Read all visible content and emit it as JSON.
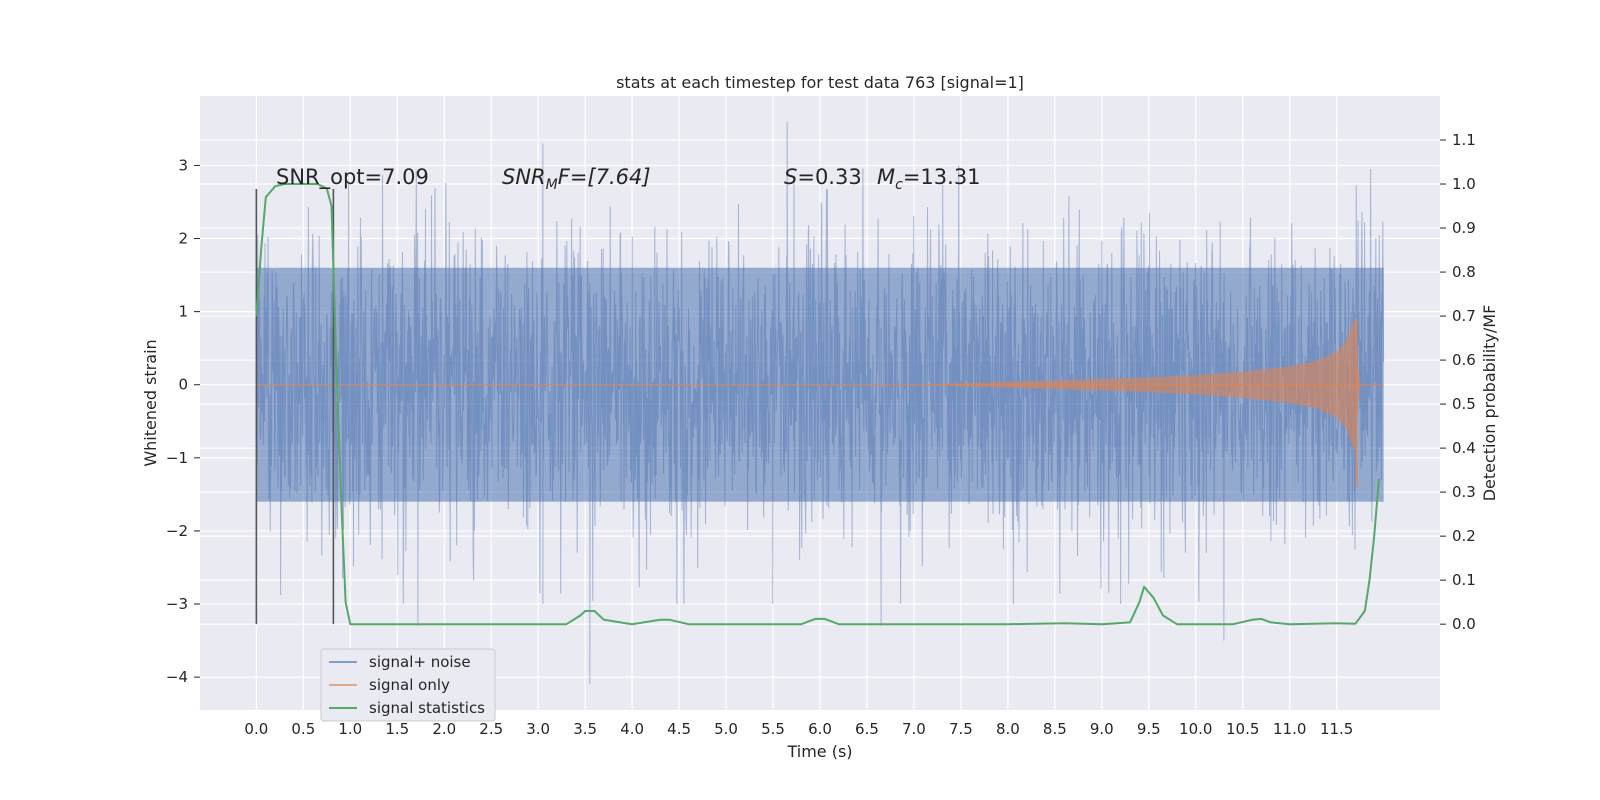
{
  "chart_data": {
    "type": "line",
    "title": "stats at each timestep for test data 763 [signal=1]",
    "xlabel": "Time (s)",
    "ylabel": "Whitened strain",
    "y2label": "Detection probability/MF",
    "xlim": [
      -0.6,
      12.6
    ],
    "ylim": [
      -4.45,
      3.95
    ],
    "y2lim": [
      -0.195,
      1.2
    ],
    "xticks": [
      "0.0",
      "0.5",
      "1.0",
      "1.5",
      "2.0",
      "2.5",
      "3.0",
      "3.5",
      "4.0",
      "4.5",
      "5.0",
      "5.5",
      "6.0",
      "6.5",
      "7.0",
      "7.5",
      "8.0",
      "8.5",
      "9.0",
      "9.5",
      "10.0",
      "10.5",
      "11.0",
      "11.5"
    ],
    "yticks": [
      "3",
      "2",
      "1",
      "0",
      "−1",
      "−2",
      "−3",
      "−4"
    ],
    "y2ticks": [
      "1.1",
      "1.0",
      "0.9",
      "0.8",
      "0.7",
      "0.6",
      "0.5",
      "0.4",
      "0.3",
      "0.2",
      "0.1",
      "0.0"
    ],
    "annotations": {
      "snr_opt": "SNR_opt=7.09",
      "snr_mf_main": "SNR",
      "snr_mf_sub": "M",
      "snr_mf_rest": "F=[7.64]",
      "s_main": "S",
      "s_rest": "=0.33",
      "mc_main": "M",
      "mc_sub": "c",
      "mc_rest": "=13.31"
    },
    "vlines": [
      0.0,
      0.82
    ],
    "noise": {
      "x_range": [
        0.0,
        12.0
      ],
      "typical_range": [
        -1.6,
        1.6
      ],
      "extremes": [
        {
          "x": 5.65,
          "y": 3.6
        },
        {
          "x": 3.05,
          "y": 3.3
        },
        {
          "x": 3.55,
          "y": -4.1
        },
        {
          "x": 10.3,
          "y": -3.5
        },
        {
          "x": 1.72,
          "y": -3.3
        },
        {
          "x": 3.05,
          "y": -3.0
        },
        {
          "x": 6.65,
          "y": -3.3
        },
        {
          "x": 9.2,
          "y": -3.0
        }
      ]
    },
    "series": [
      {
        "name": "signal+ noise",
        "color": "#4c72b0"
      },
      {
        "name": "signal only",
        "color": "#dd8452",
        "envelope": [
          [
            7.0,
            0.0
          ],
          [
            7.5,
            0.02
          ],
          [
            8.0,
            0.04
          ],
          [
            8.5,
            0.06
          ],
          [
            9.0,
            0.08
          ],
          [
            9.5,
            0.1
          ],
          [
            10.0,
            0.13
          ],
          [
            10.5,
            0.18
          ],
          [
            11.0,
            0.25
          ],
          [
            11.3,
            0.33
          ],
          [
            11.5,
            0.45
          ],
          [
            11.6,
            0.6
          ],
          [
            11.66,
            0.8
          ],
          [
            11.7,
            0.95
          ],
          [
            11.72,
            0.3
          ],
          [
            11.75,
            0.02
          ],
          [
            12.0,
            0.0
          ]
        ]
      },
      {
        "name": "signal statistics",
        "color": "#55a868",
        "x": [
          0.0,
          0.05,
          0.1,
          0.2,
          0.3,
          0.5,
          0.65,
          0.75,
          0.8,
          0.85,
          0.9,
          0.95,
          1.0,
          1.5,
          2.0,
          2.5,
          3.0,
          3.3,
          3.45,
          3.5,
          3.6,
          3.7,
          4.0,
          4.3,
          4.4,
          4.6,
          5.0,
          5.5,
          5.8,
          5.95,
          6.05,
          6.2,
          7.0,
          8.0,
          8.6,
          9.0,
          9.3,
          9.4,
          9.45,
          9.55,
          9.65,
          9.8,
          10.0,
          10.4,
          10.6,
          10.7,
          10.8,
          11.0,
          11.5,
          11.7,
          11.8,
          11.85,
          11.9,
          11.95
        ],
        "y": [
          0.7,
          0.85,
          0.97,
          0.995,
          1.0,
          1.0,
          1.0,
          0.99,
          0.95,
          0.6,
          0.3,
          0.05,
          0.0,
          0.0,
          0.0,
          0.0,
          0.0,
          0.0,
          0.02,
          0.03,
          0.03,
          0.01,
          0.0,
          0.01,
          0.01,
          0.0,
          0.0,
          0.0,
          0.0,
          0.012,
          0.012,
          0.0,
          0.0,
          0.0,
          0.002,
          0.0,
          0.004,
          0.05,
          0.085,
          0.06,
          0.02,
          0.0,
          0.0,
          0.0,
          0.01,
          0.012,
          0.004,
          0.0,
          0.002,
          0.001,
          0.03,
          0.1,
          0.2,
          0.33
        ]
      }
    ],
    "legend_position": "lower-left"
  }
}
